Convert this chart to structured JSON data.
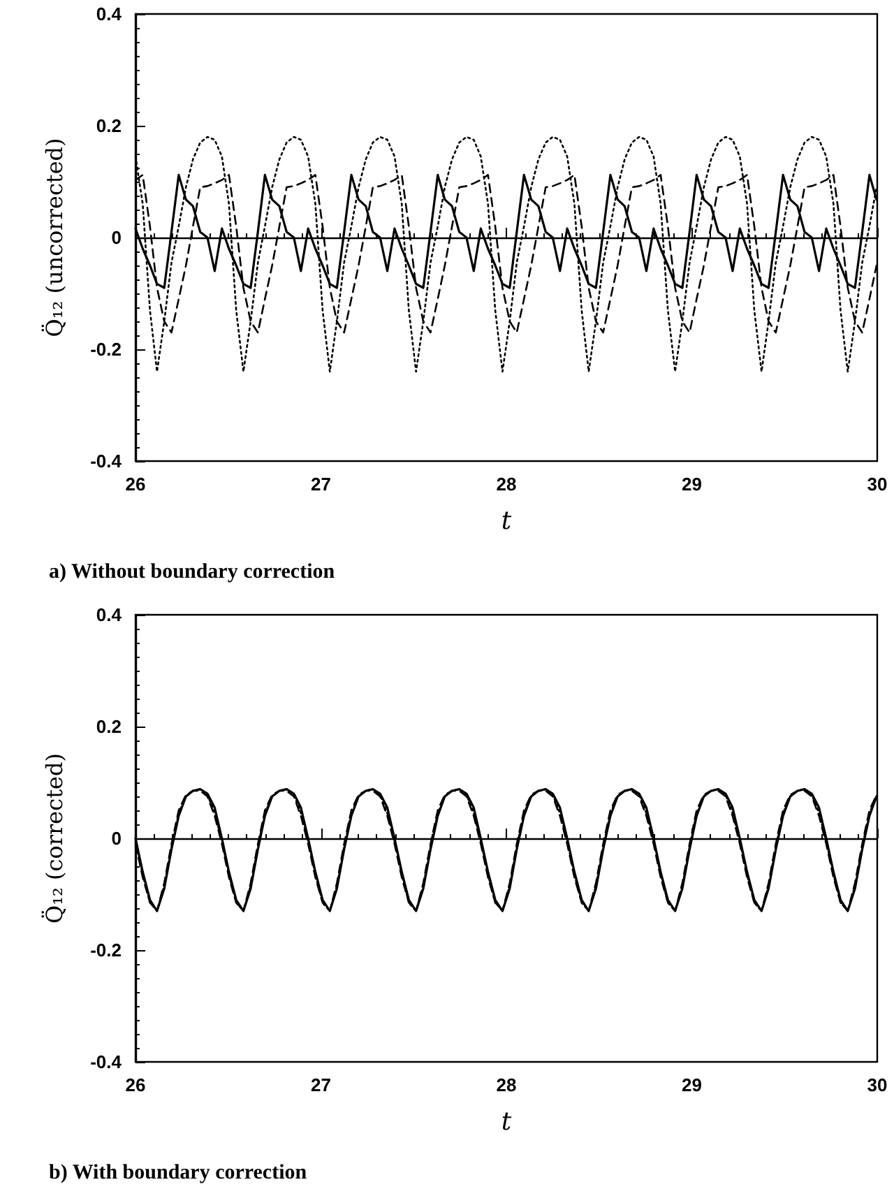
{
  "chart_data": [
    {
      "type": "line",
      "title": "a) Without boundary correction",
      "xlabel": "t",
      "ylabel": "Q̈₁₂ (uncorrected)",
      "xlim": [
        26,
        30
      ],
      "xticks": [
        26,
        27,
        28,
        29,
        30
      ],
      "ylim": [
        -0.4,
        0.4
      ],
      "yticks": [
        -0.4,
        -0.2,
        0,
        0.2,
        0.4
      ],
      "marker": "none",
      "x": [
        26,
        26.039,
        26.078,
        26.116,
        26.155,
        26.194,
        26.233,
        26.272,
        26.31,
        26.349,
        26.388,
        26.427,
        26.466,
        26.504,
        26.543,
        26.582,
        26.621,
        26.66,
        26.698,
        26.737,
        26.776,
        26.815,
        26.854,
        26.892,
        26.931,
        26.97,
        27.009,
        27.048,
        27.086,
        27.125,
        27.164,
        27.203,
        27.242,
        27.28,
        27.319,
        27.358,
        27.397,
        27.436,
        27.474,
        27.513,
        27.552,
        27.591,
        27.63,
        27.668,
        27.707,
        27.746,
        27.785,
        27.824,
        27.862,
        27.901,
        27.94,
        27.979,
        28.018,
        28.056,
        28.095,
        28.134,
        28.173,
        28.212,
        28.25,
        28.289,
        28.328,
        28.367,
        28.406,
        28.444,
        28.483,
        28.522,
        28.561,
        28.6,
        28.638,
        28.677,
        28.716,
        28.755,
        28.794,
        28.832,
        28.871,
        28.91,
        28.949,
        28.988,
        29.026,
        29.065,
        29.104,
        29.143,
        29.182,
        29.22,
        29.259,
        29.298,
        29.337,
        29.376,
        29.414,
        29.453,
        29.492,
        29.531,
        29.57,
        29.608,
        29.647,
        29.686,
        29.725,
        29.764,
        29.802,
        29.841,
        29.88,
        29.919,
        29.958,
        29.996
      ],
      "series": [
        {
          "color": "#000000",
          "line_style": "solid",
          "values": [
            0.016,
            -0.02,
            -0.05,
            -0.083,
            -0.09,
            0.01,
            0.112,
            0.068,
            0.056,
            0.01,
            0,
            -0.06,
            0.016,
            -0.02,
            -0.05,
            -0.083,
            -0.09,
            0.01,
            0.112,
            0.068,
            0.056,
            0.01,
            0,
            -0.06,
            0.016,
            -0.02,
            -0.05,
            -0.083,
            -0.09,
            0.01,
            0.112,
            0.068,
            0.056,
            0.01,
            0,
            -0.06,
            0.016,
            -0.02,
            -0.05,
            -0.083,
            -0.09,
            0.01,
            0.112,
            0.068,
            0.056,
            0.01,
            0,
            -0.06,
            0.016,
            -0.02,
            -0.05,
            -0.083,
            -0.09,
            0.01,
            0.112,
            0.068,
            0.056,
            0.01,
            0,
            -0.06,
            0.016,
            -0.02,
            -0.05,
            -0.083,
            -0.09,
            0.01,
            0.112,
            0.068,
            0.056,
            0.01,
            0,
            -0.06,
            0.016,
            -0.02,
            -0.05,
            -0.083,
            -0.09,
            0.01,
            0.112,
            0.068,
            0.056,
            0.01,
            0,
            -0.06,
            0.016,
            -0.02,
            -0.05,
            -0.083,
            -0.09,
            0.01,
            0.112,
            0.068,
            0.056,
            0.01,
            0,
            -0.06,
            0.016,
            -0.02,
            -0.05,
            -0.083,
            -0.09,
            0.01,
            0.112,
            0.068
          ]
        },
        {
          "color": "#000000",
          "line_style": "dashed",
          "values": [
            0.103,
            0.112,
            0.02,
            -0.09,
            -0.15,
            -0.17,
            -0.11,
            -0.05,
            0.02,
            0.09,
            0.092,
            0.097,
            0.103,
            0.112,
            0.02,
            -0.09,
            -0.15,
            -0.17,
            -0.11,
            -0.05,
            0.02,
            0.09,
            0.092,
            0.097,
            0.103,
            0.112,
            0.02,
            -0.09,
            -0.15,
            -0.17,
            -0.11,
            -0.05,
            0.02,
            0.09,
            0.092,
            0.097,
            0.103,
            0.112,
            0.02,
            -0.09,
            -0.15,
            -0.17,
            -0.11,
            -0.05,
            0.02,
            0.09,
            0.092,
            0.097,
            0.103,
            0.112,
            0.02,
            -0.09,
            -0.15,
            -0.17,
            -0.11,
            -0.05,
            0.02,
            0.09,
            0.092,
            0.097,
            0.103,
            0.112,
            0.02,
            -0.09,
            -0.15,
            -0.17,
            -0.11,
            -0.05,
            0.02,
            0.09,
            0.092,
            0.097,
            0.103,
            0.112,
            0.02,
            -0.09,
            -0.15,
            -0.17,
            -0.11,
            -0.05,
            0.02,
            0.09,
            0.092,
            0.097,
            0.103,
            0.112,
            0.02,
            -0.09,
            -0.15,
            -0.17,
            -0.11,
            -0.05,
            0.02,
            0.09,
            0.092,
            0.097,
            0.103,
            0.112,
            0.02,
            -0.09,
            -0.15,
            -0.17,
            -0.11,
            -0.05
          ]
        },
        {
          "color": "#000000",
          "line_style": "dotted",
          "values": [
            0.145,
            0.06,
            -0.13,
            -0.24,
            -0.15,
            -0.045,
            0.02,
            0.09,
            0.14,
            0.17,
            0.18,
            0.175,
            0.145,
            0.06,
            -0.13,
            -0.24,
            -0.15,
            -0.045,
            0.02,
            0.09,
            0.14,
            0.17,
            0.18,
            0.175,
            0.145,
            0.06,
            -0.13,
            -0.24,
            -0.15,
            -0.045,
            0.02,
            0.09,
            0.14,
            0.17,
            0.18,
            0.175,
            0.145,
            0.06,
            -0.13,
            -0.24,
            -0.15,
            -0.045,
            0.02,
            0.09,
            0.14,
            0.17,
            0.18,
            0.175,
            0.145,
            0.06,
            -0.13,
            -0.24,
            -0.15,
            -0.045,
            0.02,
            0.09,
            0.14,
            0.17,
            0.18,
            0.175,
            0.145,
            0.06,
            -0.13,
            -0.24,
            -0.15,
            -0.045,
            0.02,
            0.09,
            0.14,
            0.17,
            0.18,
            0.175,
            0.145,
            0.06,
            -0.13,
            -0.24,
            -0.15,
            -0.045,
            0.02,
            0.09,
            0.14,
            0.17,
            0.18,
            0.175,
            0.145,
            0.06,
            -0.13,
            -0.24,
            -0.15,
            -0.045,
            0.02,
            0.09,
            0.14,
            0.17,
            0.18,
            0.175,
            0.145,
            0.06,
            -0.13,
            -0.24,
            -0.15,
            -0.045,
            0.02,
            0.09
          ]
        }
      ]
    },
    {
      "type": "line",
      "title": "b) With boundary correction",
      "xlabel": "t",
      "ylabel": "Q̈₁₂ (corrected)",
      "xlim": [
        26,
        30
      ],
      "xticks": [
        26,
        27,
        28,
        29,
        30
      ],
      "ylim": [
        -0.4,
        0.4
      ],
      "yticks": [
        -0.4,
        -0.2,
        0,
        0.2,
        0.4
      ],
      "marker": "none",
      "x": [
        26,
        26.039,
        26.078,
        26.116,
        26.155,
        26.194,
        26.233,
        26.272,
        26.31,
        26.349,
        26.388,
        26.427,
        26.466,
        26.504,
        26.543,
        26.582,
        26.621,
        26.66,
        26.698,
        26.737,
        26.776,
        26.815,
        26.854,
        26.892,
        26.931,
        26.97,
        27.009,
        27.048,
        27.086,
        27.125,
        27.164,
        27.203,
        27.242,
        27.28,
        27.319,
        27.358,
        27.397,
        27.436,
        27.474,
        27.513,
        27.552,
        27.591,
        27.63,
        27.668,
        27.707,
        27.746,
        27.785,
        27.824,
        27.862,
        27.901,
        27.94,
        27.979,
        28.018,
        28.056,
        28.095,
        28.134,
        28.173,
        28.212,
        28.25,
        28.289,
        28.328,
        28.367,
        28.406,
        28.444,
        28.483,
        28.522,
        28.561,
        28.6,
        28.638,
        28.677,
        28.716,
        28.755,
        28.794,
        28.832,
        28.871,
        28.91,
        28.949,
        28.988,
        29.026,
        29.065,
        29.104,
        29.143,
        29.182,
        29.22,
        29.259,
        29.298,
        29.337,
        29.376,
        29.414,
        29.453,
        29.492,
        29.531,
        29.57,
        29.608,
        29.647,
        29.686,
        29.725,
        29.764,
        29.802,
        29.841,
        29.88,
        29.919,
        29.958,
        29.996
      ],
      "series": [
        {
          "color": "#000000",
          "line_style": "solid",
          "values": [
            0,
            -0.06,
            -0.11,
            -0.13,
            -0.09,
            -0.02,
            0.04,
            0.075,
            0.085,
            0.088,
            0.08,
            0.055,
            0,
            -0.06,
            -0.11,
            -0.13,
            -0.09,
            -0.02,
            0.04,
            0.075,
            0.085,
            0.088,
            0.08,
            0.055,
            0,
            -0.06,
            -0.11,
            -0.13,
            -0.09,
            -0.02,
            0.04,
            0.075,
            0.085,
            0.088,
            0.08,
            0.055,
            0,
            -0.06,
            -0.11,
            -0.13,
            -0.09,
            -0.02,
            0.04,
            0.075,
            0.085,
            0.088,
            0.08,
            0.055,
            0,
            -0.06,
            -0.11,
            -0.13,
            -0.09,
            -0.02,
            0.04,
            0.075,
            0.085,
            0.088,
            0.08,
            0.055,
            0,
            -0.06,
            -0.11,
            -0.13,
            -0.09,
            -0.02,
            0.04,
            0.075,
            0.085,
            0.088,
            0.08,
            0.055,
            0,
            -0.06,
            -0.11,
            -0.13,
            -0.09,
            -0.02,
            0.04,
            0.075,
            0.085,
            0.088,
            0.08,
            0.055,
            0,
            -0.06,
            -0.11,
            -0.13,
            -0.09,
            -0.02,
            0.04,
            0.075,
            0.085,
            0.088,
            0.08,
            0.055,
            0,
            -0.06,
            -0.11,
            -0.13,
            -0.09,
            -0.02,
            0.04,
            0.075
          ]
        },
        {
          "color": "#000000",
          "line_style": "dashed",
          "values": [
            -0.01,
            -0.07,
            -0.115,
            -0.13,
            -0.08,
            -0.01,
            0.05,
            0.078,
            0.085,
            0.085,
            0.075,
            0.04,
            -0.01,
            -0.07,
            -0.115,
            -0.13,
            -0.08,
            -0.01,
            0.05,
            0.078,
            0.085,
            0.085,
            0.075,
            0.04,
            -0.01,
            -0.07,
            -0.115,
            -0.13,
            -0.08,
            -0.01,
            0.05,
            0.078,
            0.085,
            0.085,
            0.075,
            0.04,
            -0.01,
            -0.07,
            -0.115,
            -0.13,
            -0.08,
            -0.01,
            0.05,
            0.078,
            0.085,
            0.085,
            0.075,
            0.04,
            -0.01,
            -0.07,
            -0.115,
            -0.13,
            -0.08,
            -0.01,
            0.05,
            0.078,
            0.085,
            0.085,
            0.075,
            0.04,
            -0.01,
            -0.07,
            -0.115,
            -0.13,
            -0.08,
            -0.01,
            0.05,
            0.078,
            0.085,
            0.085,
            0.075,
            0.04,
            -0.01,
            -0.07,
            -0.115,
            -0.13,
            -0.08,
            -0.01,
            0.05,
            0.078,
            0.085,
            0.085,
            0.075,
            0.04,
            -0.01,
            -0.07,
            -0.115,
            -0.13,
            -0.08,
            -0.01,
            0.05,
            0.078,
            0.085,
            0.085,
            0.075,
            0.04,
            -0.01,
            -0.07,
            -0.115,
            -0.13,
            -0.08,
            -0.01,
            0.05,
            0.078
          ]
        },
        {
          "color": "#000000",
          "line_style": "dotted",
          "values": [
            -0.005,
            -0.065,
            -0.115,
            -0.13,
            -0.085,
            -0.015,
            0.045,
            0.075,
            0.085,
            0.088,
            0.078,
            0.045,
            -0.005,
            -0.065,
            -0.115,
            -0.13,
            -0.085,
            -0.015,
            0.045,
            0.075,
            0.085,
            0.088,
            0.078,
            0.045,
            -0.005,
            -0.065,
            -0.115,
            -0.13,
            -0.085,
            -0.015,
            0.045,
            0.075,
            0.085,
            0.088,
            0.078,
            0.045,
            -0.005,
            -0.065,
            -0.115,
            -0.13,
            -0.085,
            -0.015,
            0.045,
            0.075,
            0.085,
            0.088,
            0.078,
            0.045,
            -0.005,
            -0.065,
            -0.115,
            -0.13,
            -0.085,
            -0.015,
            0.045,
            0.075,
            0.085,
            0.088,
            0.078,
            0.045,
            -0.005,
            -0.065,
            -0.115,
            -0.13,
            -0.085,
            -0.015,
            0.045,
            0.075,
            0.085,
            0.088,
            0.078,
            0.045,
            -0.005,
            -0.065,
            -0.115,
            -0.13,
            -0.085,
            -0.015,
            0.045,
            0.075,
            0.085,
            0.088,
            0.078,
            0.045,
            -0.005,
            -0.065,
            -0.115,
            -0.13,
            -0.085,
            -0.015,
            0.045,
            0.075,
            0.085,
            0.088,
            0.078,
            0.045,
            -0.005,
            -0.065,
            -0.115,
            -0.13,
            -0.085,
            -0.015,
            0.045,
            0.075
          ]
        }
      ]
    }
  ]
}
